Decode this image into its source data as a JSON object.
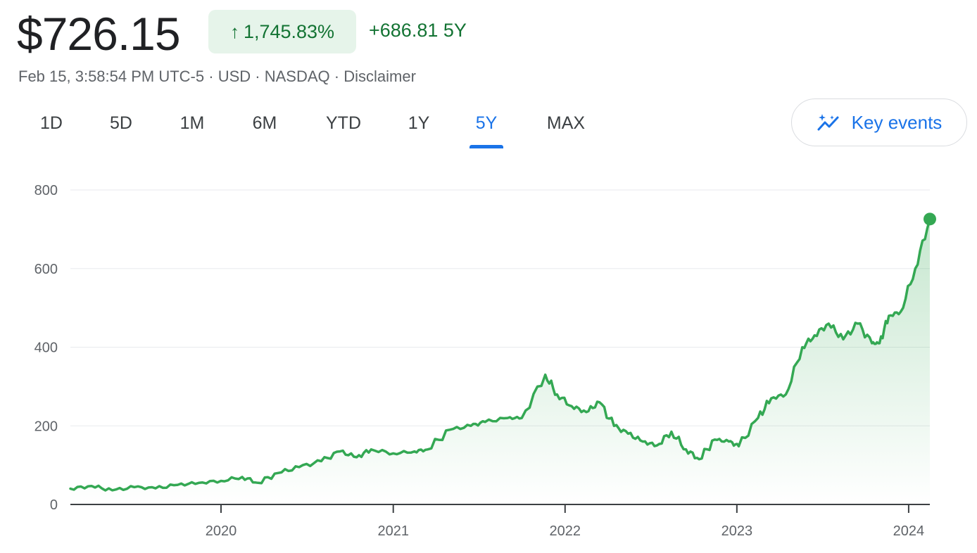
{
  "quote": {
    "price": "$726.15",
    "change_pct": "1,745.83%",
    "change_abs": "+686.81",
    "period": "5Y",
    "arrow_icon": "arrow-up-icon",
    "positive_color": "#137333"
  },
  "meta": {
    "timestamp": "Feb 15, 3:58:54 PM UTC-5",
    "currency": "USD",
    "exchange": "NASDAQ",
    "disclaimer": "Disclaimer",
    "separator": "·"
  },
  "tabs": [
    {
      "label": "1D"
    },
    {
      "label": "5D"
    },
    {
      "label": "1M"
    },
    {
      "label": "6M"
    },
    {
      "label": "YTD"
    },
    {
      "label": "1Y"
    },
    {
      "label": "5Y"
    },
    {
      "label": "MAX"
    }
  ],
  "active_tab": "5Y",
  "key_events": {
    "label": "Key events",
    "icon": "trend-sparkle-icon"
  },
  "chart_data": {
    "type": "area",
    "title": "",
    "xlabel": "",
    "ylabel": "",
    "ylim": [
      0,
      800
    ],
    "yticks": [
      0,
      200,
      400,
      600,
      800
    ],
    "xlim": [
      "2019-02-15",
      "2024-02-15"
    ],
    "xticks": [
      {
        "label": "2020",
        "date": "2020-01-01"
      },
      {
        "label": "2021",
        "date": "2021-01-01"
      },
      {
        "label": "2022",
        "date": "2022-01-01"
      },
      {
        "label": "2023",
        "date": "2023-01-01"
      },
      {
        "label": "2024",
        "date": "2024-01-01"
      }
    ],
    "grid": true,
    "line_color": "#34a853",
    "series": [
      {
        "x": [
          "2019-02-15",
          "2019-04-01",
          "2019-05-15",
          "2019-07-01",
          "2019-08-15",
          "2019-10-01",
          "2019-11-15",
          "2020-01-01",
          "2020-02-15",
          "2020-03-20",
          "2020-05-01",
          "2020-06-15",
          "2020-08-01",
          "2020-09-10",
          "2020-10-15",
          "2020-11-15",
          "2021-01-01",
          "2021-02-15",
          "2021-03-15",
          "2021-05-01",
          "2021-06-15",
          "2021-07-15",
          "2021-09-01",
          "2021-10-01",
          "2021-11-20",
          "2021-12-15",
          "2022-01-15",
          "2022-02-15",
          "2022-03-15",
          "2022-04-15",
          "2022-05-15",
          "2022-06-15",
          "2022-07-15",
          "2022-08-15",
          "2022-09-15",
          "2022-10-13",
          "2022-11-15",
          "2022-12-15",
          "2023-01-05",
          "2023-02-15",
          "2023-03-15",
          "2023-04-15",
          "2023-05-20",
          "2023-06-15",
          "2023-07-15",
          "2023-08-15",
          "2023-09-15",
          "2023-10-15",
          "2023-10-31",
          "2023-11-20",
          "2023-12-15",
          "2024-01-15",
          "2024-02-15"
        ],
        "y": [
          40,
          47,
          36,
          44,
          41,
          50,
          55,
          60,
          70,
          55,
          80,
          95,
          110,
          135,
          120,
          140,
          130,
          135,
          140,
          190,
          200,
          210,
          220,
          220,
          330,
          280,
          250,
          235,
          260,
          200,
          180,
          160,
          150,
          185,
          140,
          115,
          165,
          160,
          148,
          220,
          270,
          280,
          400,
          430,
          460,
          420,
          460,
          410,
          410,
          480,
          490,
          600,
          726
        ]
      }
    ],
    "last_value": 726.15
  }
}
